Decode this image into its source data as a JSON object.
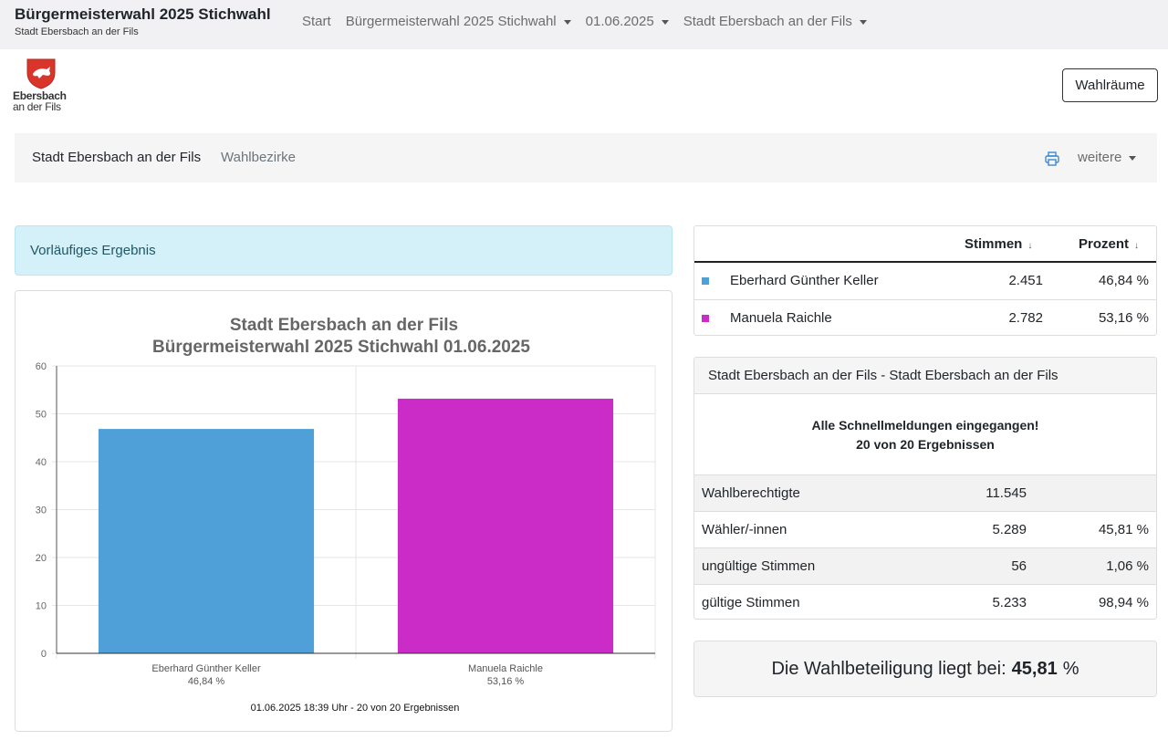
{
  "header": {
    "title": "Bürgermeisterwahl 2025 Stichwahl",
    "subtitle": "Stadt Ebersbach an der Fils",
    "nav": [
      {
        "label": "Start",
        "dropdown": false
      },
      {
        "label": "Bürgermeisterwahl 2025 Stichwahl",
        "dropdown": true
      },
      {
        "label": "01.06.2025",
        "dropdown": true
      },
      {
        "label": "Stadt Ebersbach an der Fils",
        "dropdown": true
      }
    ]
  },
  "logo": {
    "line1": "Ebersbach",
    "line2": "an der Fils",
    "color": "#d9352b"
  },
  "rooms_button": "Wahlräume",
  "subnav": {
    "primary": "Stadt Ebersbach an der Fils",
    "secondary": "Wahlbezirke",
    "more": "weitere",
    "print_icon": "printer-icon"
  },
  "alert": "Vorläufiges Ergebnis",
  "chart_data": {
    "type": "bar",
    "title": [
      "Stadt Ebersbach an der Fils",
      "Bürgermeisterwahl 2025 Stichwahl 01.06.2025"
    ],
    "categories": [
      "Eberhard Günther Keller",
      "Manuela Raichle"
    ],
    "category_sublabels": [
      "46,84 %",
      "53,16 %"
    ],
    "values": [
      46.84,
      53.16
    ],
    "colors": [
      "#4f9fd9",
      "#cb2cc8"
    ],
    "yticks": [
      "0",
      "10",
      "20",
      "30",
      "40",
      "50",
      "60"
    ],
    "ylim": [
      0,
      60
    ],
    "grid": true,
    "footer": "01.06.2025 18:39 Uhr - 20 von 20 Ergebnissen"
  },
  "results": {
    "col_votes": "Stimmen",
    "col_percent": "Prozent",
    "sort_icon": "↓",
    "rows": [
      {
        "name": "Eberhard Günther Keller",
        "votes": "2.451",
        "percent": "46,84 %",
        "color": "#4f9fd9"
      },
      {
        "name": "Manuela Raichle",
        "votes": "2.782",
        "percent": "53,16 %",
        "color": "#cb2cc8"
      }
    ]
  },
  "summary": {
    "title": "Stadt Ebersbach an der Fils - Stadt Ebersbach an der Fils",
    "message_line1": "Alle Schnellmeldungen eingegangen!",
    "message_line2": "20 von 20 Ergebnissen",
    "rows": [
      {
        "label": "Wahlberechtigte",
        "value": "11.545",
        "percent": ""
      },
      {
        "label": "Wähler/-innen",
        "value": "5.289",
        "percent": "45,81 %"
      },
      {
        "label": "ungültige Stimmen",
        "value": "56",
        "percent": "1,06 %"
      },
      {
        "label": "gültige Stimmen",
        "value": "5.233",
        "percent": "98,94 %"
      }
    ]
  },
  "turnout": {
    "prefix": "Die Wahlbeteiligung liegt bei:",
    "value": "45,81",
    "unit": "%"
  }
}
